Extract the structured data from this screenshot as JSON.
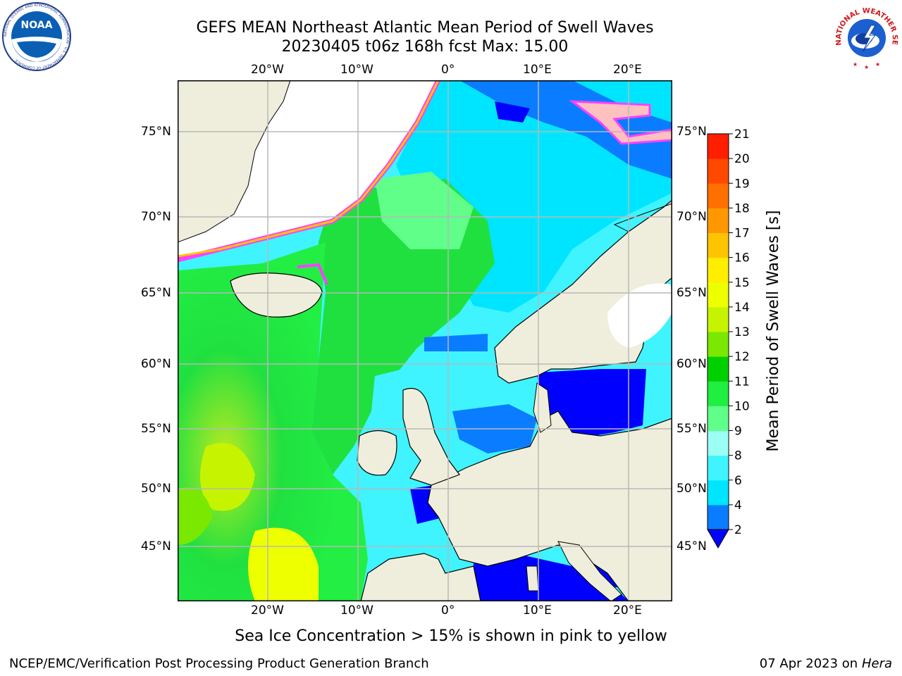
{
  "title": {
    "line1": "GEFS MEAN Northeast Atlantic Mean Period of Swell Waves",
    "line2": "20230405 t06z 168h fcst   Max: 15.00"
  },
  "axes": {
    "lon_ticks": [
      "20°W",
      "10°W",
      "0°",
      "10°E",
      "20°E"
    ],
    "lat_ticks": [
      "75°N",
      "70°N",
      "65°N",
      "60°N",
      "55°N",
      "50°N",
      "45°N"
    ]
  },
  "colorbar": {
    "label": "Mean Period of Swell Waves [s]",
    "ticks": [
      "2",
      "4",
      "6",
      "8",
      "9",
      "10",
      "11",
      "12",
      "13",
      "14",
      "15",
      "16",
      "17",
      "18",
      "19",
      "20",
      "21"
    ],
    "colors": [
      "#0000ff",
      "#0a7cff",
      "#00e5ff",
      "#3ff4ff",
      "#9cfff4",
      "#60ff8a",
      "#20ee40",
      "#00d000",
      "#7ae800",
      "#c6f400",
      "#eeff00",
      "#ffee00",
      "#ffc400",
      "#ff9800",
      "#ff7000",
      "#ff4800",
      "#ff1e00"
    ],
    "extend": "min"
  },
  "caption": "Sea Ice Concentration > 15% is shown in pink to yellow",
  "footer": {
    "left": "NCEP/EMC/Verification Post Processing Product Generation Branch",
    "right_date": "07 Apr 2023 on ",
    "right_host": "Hera"
  },
  "logos": {
    "noaa_text": "NOAA",
    "noaa_ring": "NATIONAL OCEANIC AND ATMOSPHERIC ADMINISTRATION · U.S. DEPARTMENT OF COMMERCE",
    "nws_ring": "NATIONAL WEATHER SERVICE"
  },
  "colors": {
    "land": "#efeedc",
    "ice_pink": "#ff40ff",
    "grid": "#b8b8b8"
  }
}
